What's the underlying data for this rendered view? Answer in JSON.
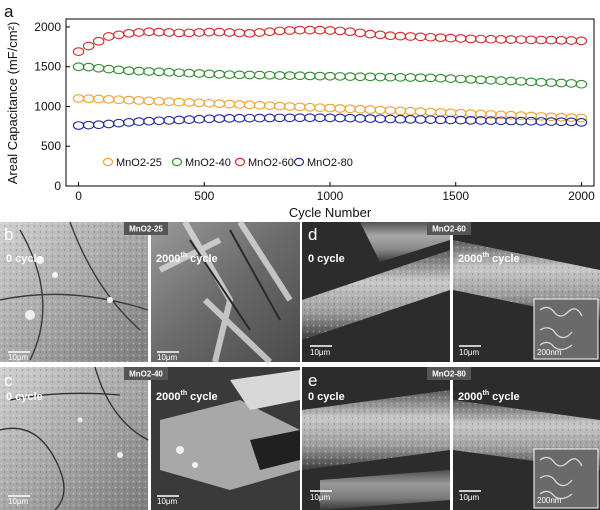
{
  "chart_data": {
    "type": "scatter",
    "panel_label": "a",
    "xlabel": "Cycle Number",
    "ylabel": "Areal Capacitance (mF/cm²)",
    "xlim": [
      -50,
      2050
    ],
    "ylim": [
      0,
      2100
    ],
    "xticks": [
      "0",
      "500",
      "1000",
      "1500",
      "2000"
    ],
    "yticks": [
      "0",
      "500",
      "1000",
      "1500",
      "2000"
    ],
    "legend_position": "bottom-left",
    "grid": false,
    "x": [
      0,
      40,
      80,
      120,
      160,
      200,
      240,
      280,
      320,
      360,
      400,
      440,
      480,
      520,
      560,
      600,
      640,
      680,
      720,
      760,
      800,
      840,
      880,
      920,
      960,
      1000,
      1040,
      1080,
      1120,
      1160,
      1200,
      1240,
      1280,
      1320,
      1360,
      1400,
      1440,
      1480,
      1520,
      1560,
      1600,
      1640,
      1680,
      1720,
      1760,
      1800,
      1840,
      1880,
      1920,
      1960,
      2000
    ],
    "series": [
      {
        "name": "MnO2-25",
        "color": "#f0a030",
        "values": [
          1100,
          1098,
          1094,
          1090,
          1085,
          1080,
          1075,
          1070,
          1065,
          1060,
          1055,
          1050,
          1045,
          1040,
          1035,
          1030,
          1025,
          1020,
          1015,
          1010,
          1005,
          1000,
          995,
          990,
          985,
          980,
          975,
          970,
          965,
          960,
          955,
          950,
          945,
          940,
          935,
          930,
          925,
          920,
          915,
          910,
          905,
          900,
          895,
          890,
          885,
          880,
          875,
          870,
          865,
          860,
          855
        ]
      },
      {
        "name": "MnO2-40",
        "color": "#2e8b2e",
        "values": [
          1500,
          1495,
          1480,
          1470,
          1460,
          1450,
          1445,
          1440,
          1435,
          1430,
          1425,
          1420,
          1415,
          1410,
          1405,
          1400,
          1398,
          1396,
          1394,
          1392,
          1390,
          1388,
          1386,
          1384,
          1382,
          1380,
          1378,
          1376,
          1374,
          1372,
          1370,
          1368,
          1366,
          1364,
          1362,
          1360,
          1355,
          1350,
          1345,
          1340,
          1335,
          1330,
          1325,
          1320,
          1315,
          1310,
          1305,
          1300,
          1295,
          1290,
          1280
        ]
      },
      {
        "name": "MnO2-60",
        "color": "#d62828",
        "values": [
          1690,
          1760,
          1820,
          1880,
          1900,
          1920,
          1930,
          1940,
          1935,
          1930,
          1925,
          1925,
          1930,
          1935,
          1935,
          1930,
          1925,
          1920,
          1930,
          1940,
          1950,
          1955,
          1960,
          1960,
          1960,
          1955,
          1950,
          1940,
          1925,
          1910,
          1900,
          1890,
          1885,
          1880,
          1875,
          1870,
          1865,
          1860,
          1855,
          1850,
          1848,
          1846,
          1844,
          1842,
          1840,
          1838,
          1836,
          1834,
          1832,
          1830,
          1825
        ]
      },
      {
        "name": "MnO2-80",
        "color": "#1e2a9a",
        "values": [
          760,
          765,
          770,
          780,
          790,
          800,
          810,
          815,
          820,
          825,
          830,
          835,
          840,
          845,
          848,
          850,
          852,
          853,
          854,
          855,
          856,
          857,
          858,
          858,
          858,
          857,
          855,
          853,
          850,
          848,
          845,
          843,
          840,
          838,
          836,
          834,
          832,
          830,
          828,
          826,
          824,
          822,
          820,
          818,
          816,
          814,
          812,
          810,
          808,
          806,
          800
        ]
      }
    ]
  },
  "micrographs": [
    {
      "panel": "b",
      "sample": "MnO2-25",
      "left_caption": "0 cycle",
      "right_caption_main": "2000",
      "right_caption_sup": "th",
      "right_caption_rest": " cycle",
      "scale_left": "10μm",
      "scale_right": "10μm"
    },
    {
      "panel": "c",
      "sample": "MnO2-40",
      "left_caption": "0 cycle",
      "right_caption_main": "2000",
      "right_caption_sup": "th",
      "right_caption_rest": " cycle",
      "scale_left": "10μm",
      "scale_right": "10μm"
    },
    {
      "panel": "d",
      "sample": "MnO2-60",
      "left_caption": "0 cycle",
      "right_caption_main": "2000",
      "right_caption_sup": "th",
      "right_caption_rest": " cycle",
      "scale_left": "10μm",
      "scale_right": "10μm",
      "inset_scale": "200nm"
    },
    {
      "panel": "e",
      "sample": "MnO2-80",
      "left_caption": "0 cycle",
      "right_caption_main": "2000",
      "right_caption_sup": "th",
      "right_caption_rest": " cycle",
      "scale_left": "10μm",
      "scale_right": "10μm",
      "inset_scale": "200nm"
    }
  ]
}
